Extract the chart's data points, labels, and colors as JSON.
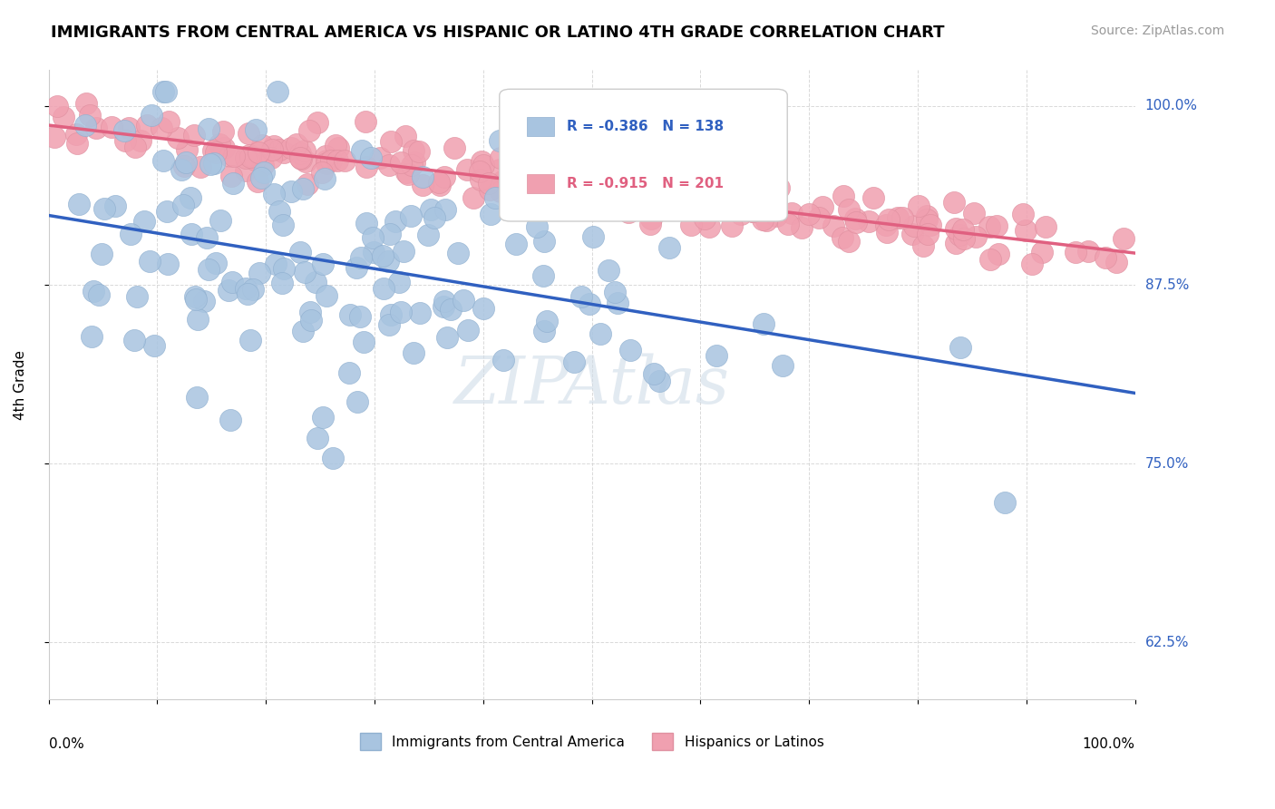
{
  "title": "IMMIGRANTS FROM CENTRAL AMERICA VS HISPANIC OR LATINO 4TH GRADE CORRELATION CHART",
  "source": "Source: ZipAtlas.com",
  "ylabel": "4th Grade",
  "ytick_labels": [
    "62.5%",
    "75.0%",
    "87.5%",
    "100.0%"
  ],
  "ytick_values": [
    0.625,
    0.75,
    0.875,
    1.0
  ],
  "legend_blue_r": "R = -0.386",
  "legend_blue_n": "N = 138",
  "legend_pink_r": "R = -0.915",
  "legend_pink_n": "N = 201",
  "blue_color": "#a8c4e0",
  "pink_color": "#f0a0b0",
  "blue_line_color": "#3060c0",
  "pink_line_color": "#e06080",
  "blue_marker_edge": "#90b0d0",
  "pink_marker_edge": "#e090a0",
  "blue_r": -0.386,
  "pink_r": -0.915,
  "blue_n": 138,
  "pink_n": 201,
  "blue_seed": 42,
  "pink_seed": 7,
  "background_color": "#ffffff",
  "grid_color": "#d0d0d0",
  "watermark_color": "#d0dce8",
  "right_label_color": "#3060c0"
}
